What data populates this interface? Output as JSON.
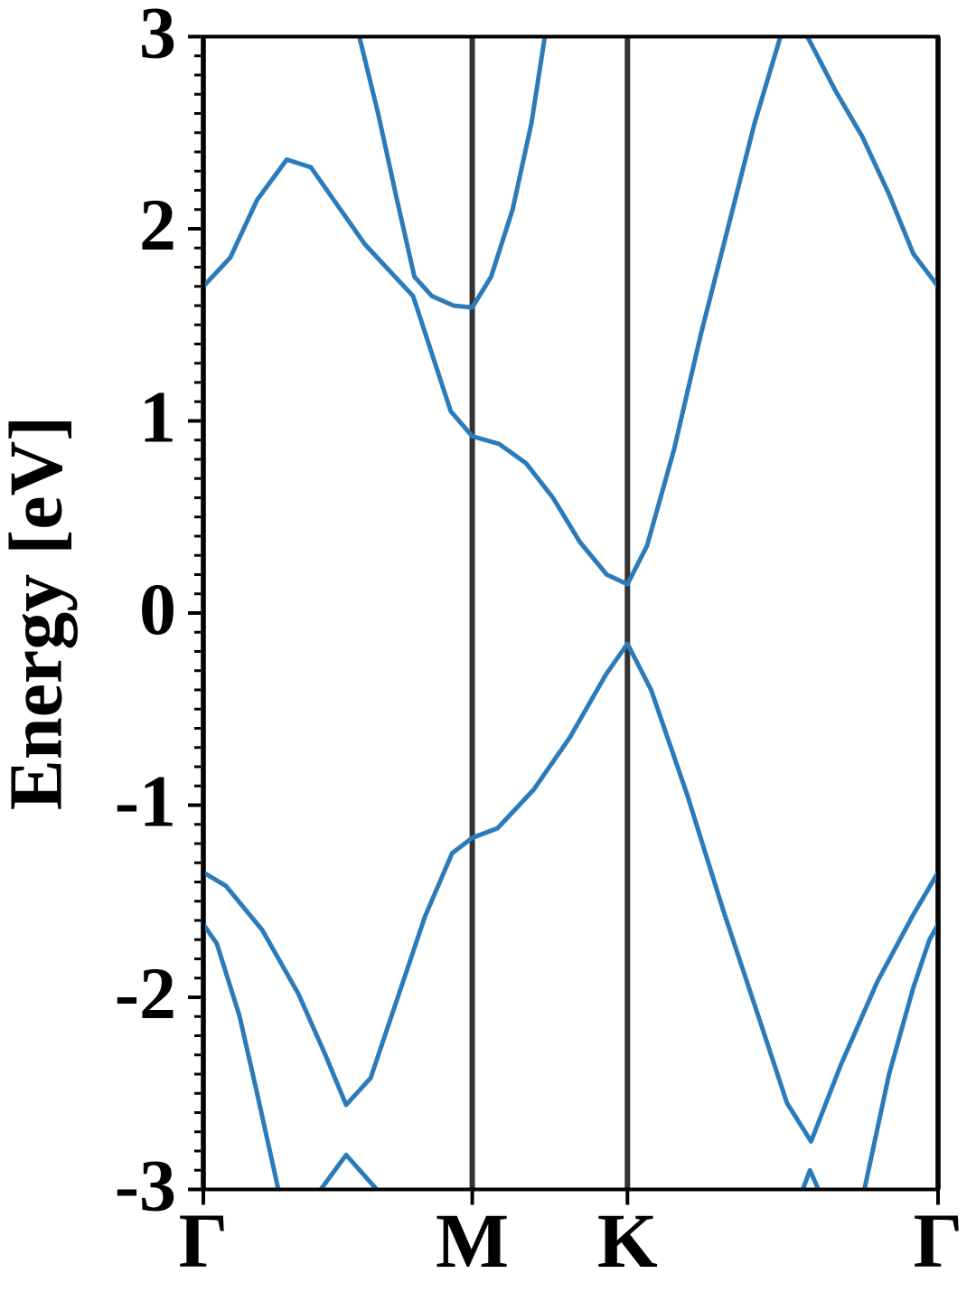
{
  "chart_data": {
    "type": "line",
    "ylabel": "Energy [eV]",
    "xlim": [
      0,
      2.732
    ],
    "ylim": [
      -3,
      3
    ],
    "xticks": [
      {
        "value": 0,
        "label": "Γ"
      },
      {
        "value": 1,
        "label": "M"
      },
      {
        "value": 1.577,
        "label": "K"
      },
      {
        "value": 2.732,
        "label": "Γ"
      }
    ],
    "yticks": [
      -3,
      -2,
      -1,
      0,
      1,
      2,
      3
    ],
    "yminorticks": [
      -2.9,
      -2.8,
      -2.7,
      -2.6,
      -2.5,
      -2.4,
      -2.3,
      -2.2,
      -2.1,
      -1.9,
      -1.8,
      -1.7,
      -1.6,
      -1.5,
      -1.4,
      -1.3,
      -1.2,
      -1.1,
      -0.9,
      -0.8,
      -0.7,
      -0.6,
      -0.5,
      -0.4,
      -0.3,
      -0.2,
      -0.1,
      0.1,
      0.2,
      0.3,
      0.4,
      0.5,
      0.6,
      0.7,
      0.8,
      0.9,
      1.1,
      1.2,
      1.3,
      1.4,
      1.5,
      1.6,
      1.7,
      1.8,
      1.9,
      2.1,
      2.2,
      2.3,
      2.4,
      2.5,
      2.6,
      2.7,
      2.8,
      2.9
    ],
    "xgrid": true,
    "grid_color": "#333333",
    "series": [
      {
        "color": "#2b7bba",
        "x": [
          0,
          0.084,
          0.219,
          0.353,
          0.454,
          0.531,
          0.622,
          0.723,
          0.824,
          0.925,
          1.0,
          1.094,
          1.228,
          1.362,
          1.497,
          1.577,
          1.665,
          1.8,
          1.934,
          2.069,
          2.17,
          2.26,
          2.371,
          2.506,
          2.64,
          2.732
        ],
        "values": [
          -1.35,
          -1.42,
          -1.65,
          -1.98,
          -2.3,
          -2.56,
          -2.42,
          -2.0,
          -1.58,
          -1.25,
          -1.17,
          -1.12,
          -0.92,
          -0.65,
          -0.32,
          -0.16,
          -0.4,
          -0.95,
          -1.55,
          -2.12,
          -2.55,
          -2.75,
          -2.35,
          -1.92,
          -1.57,
          -1.35
        ]
      },
      {
        "color": "#2b7bba",
        "x": [
          0,
          0.05,
          0.135,
          0.2,
          0.279
        ],
        "values": [
          -1.62,
          -1.72,
          -2.1,
          -2.5,
          -3
        ]
      },
      {
        "color": "#2b7bba",
        "x": [
          2.458,
          2.55,
          2.64,
          2.7,
          2.732
        ],
        "values": [
          -3,
          -2.4,
          -1.95,
          -1.7,
          -1.62
        ]
      },
      {
        "color": "#2b7bba",
        "x": [
          0.437,
          0.531,
          0.645
        ],
        "values": [
          -3,
          -2.82,
          -3
        ]
      },
      {
        "color": "#2b7bba",
        "x": [
          2.229,
          2.256,
          2.287
        ],
        "values": [
          -3,
          -2.9,
          -3
        ]
      },
      {
        "color": "#2b7bba",
        "x": [
          0,
          0.1,
          0.2,
          0.31,
          0.4,
          0.5,
          0.6,
          0.7,
          0.78,
          0.85,
          0.92,
          1.0,
          1.1,
          1.2,
          1.3,
          1.4,
          1.5,
          1.577,
          1.65,
          1.75,
          1.85,
          1.95,
          2.05,
          2.146
        ],
        "values": [
          1.7,
          1.85,
          2.15,
          2.36,
          2.32,
          2.12,
          1.92,
          1.77,
          1.65,
          1.35,
          1.05,
          0.92,
          0.88,
          0.78,
          0.6,
          0.37,
          0.2,
          0.15,
          0.35,
          0.85,
          1.45,
          2.0,
          2.55,
          3
        ]
      },
      {
        "color": "#2b7bba",
        "x": [
          2.246,
          2.35,
          2.45,
          2.55,
          2.64,
          2.732
        ],
        "values": [
          3,
          2.72,
          2.48,
          2.18,
          1.87,
          1.7
        ]
      },
      {
        "color": "#2b7bba",
        "x": [
          0.58,
          0.65,
          0.72,
          0.785,
          0.85,
          0.93,
          1.0,
          1.07,
          1.15,
          1.22,
          1.27
        ],
        "values": [
          3,
          2.6,
          2.15,
          1.75,
          1.65,
          1.6,
          1.59,
          1.75,
          2.1,
          2.55,
          3
        ]
      }
    ]
  }
}
